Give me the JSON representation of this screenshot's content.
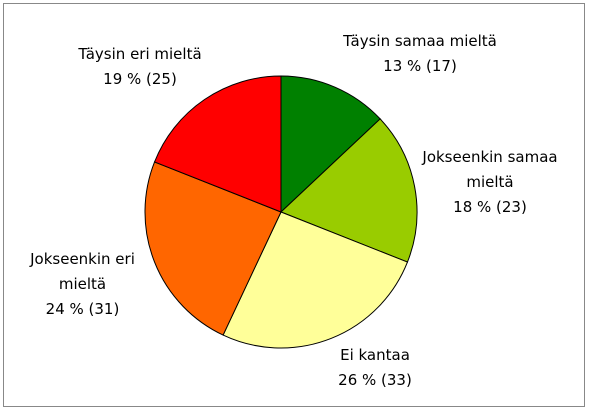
{
  "chart_data": {
    "type": "pie",
    "categories": [
      "Täysin samaa mieltä",
      "Jokseenkin samaa mieltä",
      "Ei kantaa",
      "Jokseenkin eri mieltä",
      "Täysin eri mieltä"
    ],
    "values": [
      13,
      18,
      26,
      24,
      19
    ],
    "value_labels": [
      "13 % (17)",
      "18 % (23)",
      "26 % (33)",
      "24 % (31)",
      "19 % (25)"
    ],
    "colors": [
      "#008000",
      "#99cc00",
      "#ffff99",
      "#ff6600",
      "#ff0000"
    ]
  }
}
